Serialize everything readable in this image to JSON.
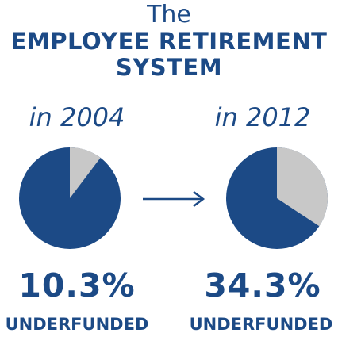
{
  "title": {
    "line1": "The",
    "line2": "EMPLOYEE RETIREMENT",
    "line3": "SYSTEM"
  },
  "colors": {
    "text": "#1c4a86",
    "funded": "#1c4a86",
    "underfunded": "#c8c8c8"
  },
  "icons": {
    "arrow": "right-arrow-icon"
  },
  "chart_data": [
    {
      "type": "pie",
      "label": "in 2004",
      "underfunded_percent": 10.3,
      "value_text": "10.3%",
      "caption": "UNDERFUNDED",
      "slices": [
        {
          "name": "underfunded",
          "value": 10.3
        },
        {
          "name": "funded",
          "value": 89.7
        }
      ]
    },
    {
      "type": "pie",
      "label": "in 2012",
      "underfunded_percent": 34.3,
      "value_text": "34.3%",
      "caption": "UNDERFUNDED",
      "slices": [
        {
          "name": "underfunded",
          "value": 34.3
        },
        {
          "name": "funded",
          "value": 65.7
        }
      ]
    }
  ]
}
